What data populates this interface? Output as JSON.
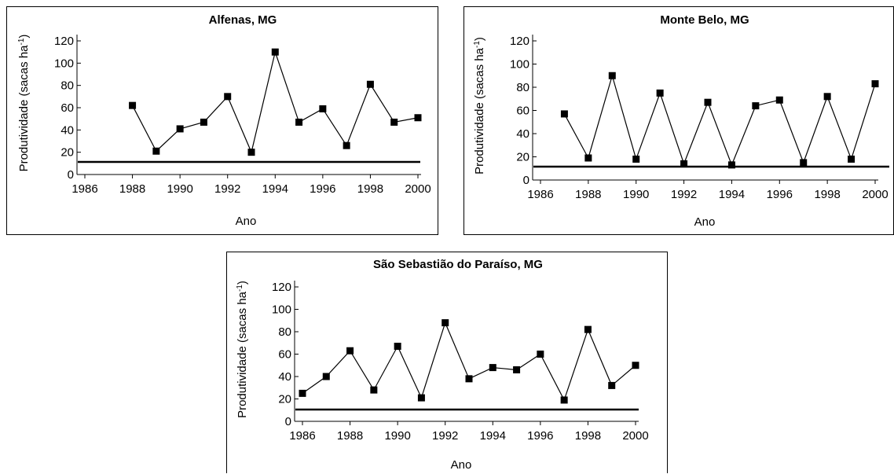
{
  "chart_data": [
    {
      "type": "line",
      "title": "Alfenas, MG",
      "xlabel": "Ano",
      "ylabel": "Produtividade (sacas ha",
      "ylabel_sup": "-1",
      "ylabel_close": ")",
      "xlim": [
        1986,
        2000
      ],
      "ylim": [
        0,
        120
      ],
      "x_ticks": [
        "1986",
        "1988",
        "1990",
        "1992",
        "1994",
        "1996",
        "1998",
        "2000"
      ],
      "y_ticks": [
        "0",
        "20",
        "40",
        "60",
        "80",
        "100",
        "120"
      ],
      "x": [
        1988,
        1989,
        1990,
        1991,
        1992,
        1993,
        1994,
        1995,
        1996,
        1997,
        1998,
        1999,
        2000
      ],
      "values": [
        62,
        21,
        41,
        47,
        70,
        20,
        110,
        47,
        59,
        26,
        81,
        47,
        51
      ],
      "marker": "square",
      "grid": false
    },
    {
      "type": "line",
      "title": "Monte Belo, MG",
      "xlabel": "Ano",
      "ylabel": "Produtividade (sacas ha",
      "ylabel_sup": "-1",
      "ylabel_close": ")",
      "xlim": [
        1986,
        2000
      ],
      "ylim": [
        0,
        120
      ],
      "x_ticks": [
        "1986",
        "1988",
        "1990",
        "1992",
        "1994",
        "1996",
        "1998",
        "2000"
      ],
      "y_ticks": [
        "0",
        "20",
        "40",
        "60",
        "80",
        "100",
        "120"
      ],
      "x": [
        1987,
        1988,
        1989,
        1990,
        1991,
        1992,
        1993,
        1994,
        1995,
        1996,
        1997,
        1998,
        1999,
        2000
      ],
      "values": [
        57,
        19,
        90,
        18,
        75,
        14,
        67,
        13,
        64,
        69,
        15,
        72,
        18,
        83
      ],
      "marker": "square",
      "grid": false
    },
    {
      "type": "line",
      "title": "São Sebastião do Paraíso, MG",
      "xlabel": "Ano",
      "ylabel": "Produtividade (sacas ha",
      "ylabel_sup": "-1",
      "ylabel_close": ")",
      "xlim": [
        1986,
        2000
      ],
      "ylim": [
        0,
        120
      ],
      "x_ticks": [
        "1986",
        "1988",
        "1990",
        "1992",
        "1994",
        "1996",
        "1998",
        "2000"
      ],
      "y_ticks": [
        "0",
        "20",
        "40",
        "60",
        "80",
        "100",
        "120"
      ],
      "x": [
        1986,
        1987,
        1988,
        1989,
        1990,
        1991,
        1992,
        1993,
        1994,
        1995,
        1996,
        1997,
        1998,
        1999,
        2000
      ],
      "values": [
        25,
        40,
        63,
        28,
        67,
        21,
        88,
        38,
        48,
        46,
        60,
        19,
        82,
        32,
        50
      ],
      "marker": "square",
      "grid": false
    }
  ]
}
